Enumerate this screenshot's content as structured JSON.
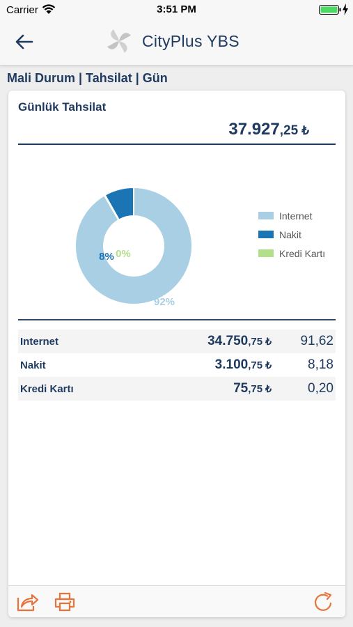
{
  "status_bar": {
    "carrier": "Carrier",
    "time": "3:51 PM"
  },
  "nav": {
    "title": "CityPlus YBS",
    "back_icon": "back-arrow-icon",
    "logo_icon": "cityplus-logo-icon"
  },
  "breadcrumb": "Mali Durum | Tahsilat | Gün",
  "card": {
    "title": "Günlük Tahsilat",
    "total": {
      "int": "37.927",
      "dec": ",25",
      "currency": "₺"
    }
  },
  "chart_data": {
    "type": "pie",
    "style": "donut",
    "legend_position": "right",
    "categories": [
      "Internet",
      "Nakit",
      "Kredi Kartı"
    ],
    "values": [
      91.62,
      8.18,
      0.2
    ],
    "data_labels": [
      "92%",
      "8%",
      "0%"
    ],
    "colors": [
      "#a8cfe3",
      "#1b75b4",
      "#b2df8a"
    ]
  },
  "rows": [
    {
      "name": "Internet",
      "amount_int": "34.750",
      "amount_dec": ",75",
      "currency": "₺",
      "percent": "91,62"
    },
    {
      "name": "Nakit",
      "amount_int": "3.100",
      "amount_dec": ",75",
      "currency": "₺",
      "percent": "8,18"
    },
    {
      "name": "Kredi Kartı",
      "amount_int": "75",
      "amount_dec": ",75",
      "currency": "₺",
      "percent": "0,20"
    }
  ],
  "footer": {
    "share_icon": "share-icon",
    "print_icon": "printer-icon",
    "refresh_icon": "refresh-icon",
    "accent_color": "#e8733a"
  }
}
